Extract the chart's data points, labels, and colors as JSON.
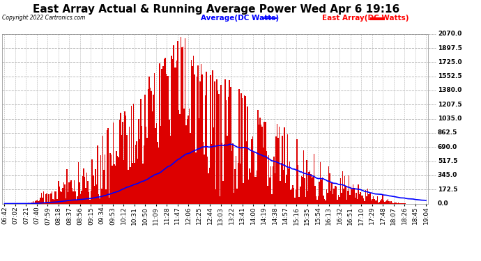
{
  "title": "East Array Actual & Running Average Power Wed Apr 6 19:16",
  "copyright": "Copyright 2022 Cartronics.com",
  "legend_avg": "Average(DC Watts)",
  "legend_east": "East Array(DC Watts)",
  "legend_avg_color": "blue",
  "legend_east_color": "red",
  "ylabel_right_values": [
    0.0,
    172.5,
    345.0,
    517.5,
    690.0,
    862.5,
    1035.0,
    1207.5,
    1380.0,
    1552.5,
    1725.0,
    1897.5,
    2070.0
  ],
  "ymax": 2070.0,
  "ymin": 0.0,
  "background_color": "#ffffff",
  "plot_bg_color": "#ffffff",
  "grid_color": "#b0b0b0",
  "bar_color": "#dd0000",
  "avg_line_color": "blue",
  "title_fontsize": 11,
  "tick_fontsize": 6.5,
  "x_tick_labels": [
    "06:42",
    "07:02",
    "07:21",
    "07:40",
    "07:59",
    "08:18",
    "08:37",
    "08:56",
    "09:15",
    "09:34",
    "09:53",
    "10:12",
    "10:31",
    "10:50",
    "11:09",
    "11:28",
    "11:47",
    "12:06",
    "12:25",
    "12:44",
    "13:03",
    "13:22",
    "13:41",
    "14:00",
    "14:19",
    "14:38",
    "14:57",
    "15:16",
    "15:35",
    "15:54",
    "16:13",
    "16:32",
    "16:51",
    "17:10",
    "17:29",
    "17:48",
    "18:07",
    "18:26",
    "18:45",
    "19:04"
  ]
}
